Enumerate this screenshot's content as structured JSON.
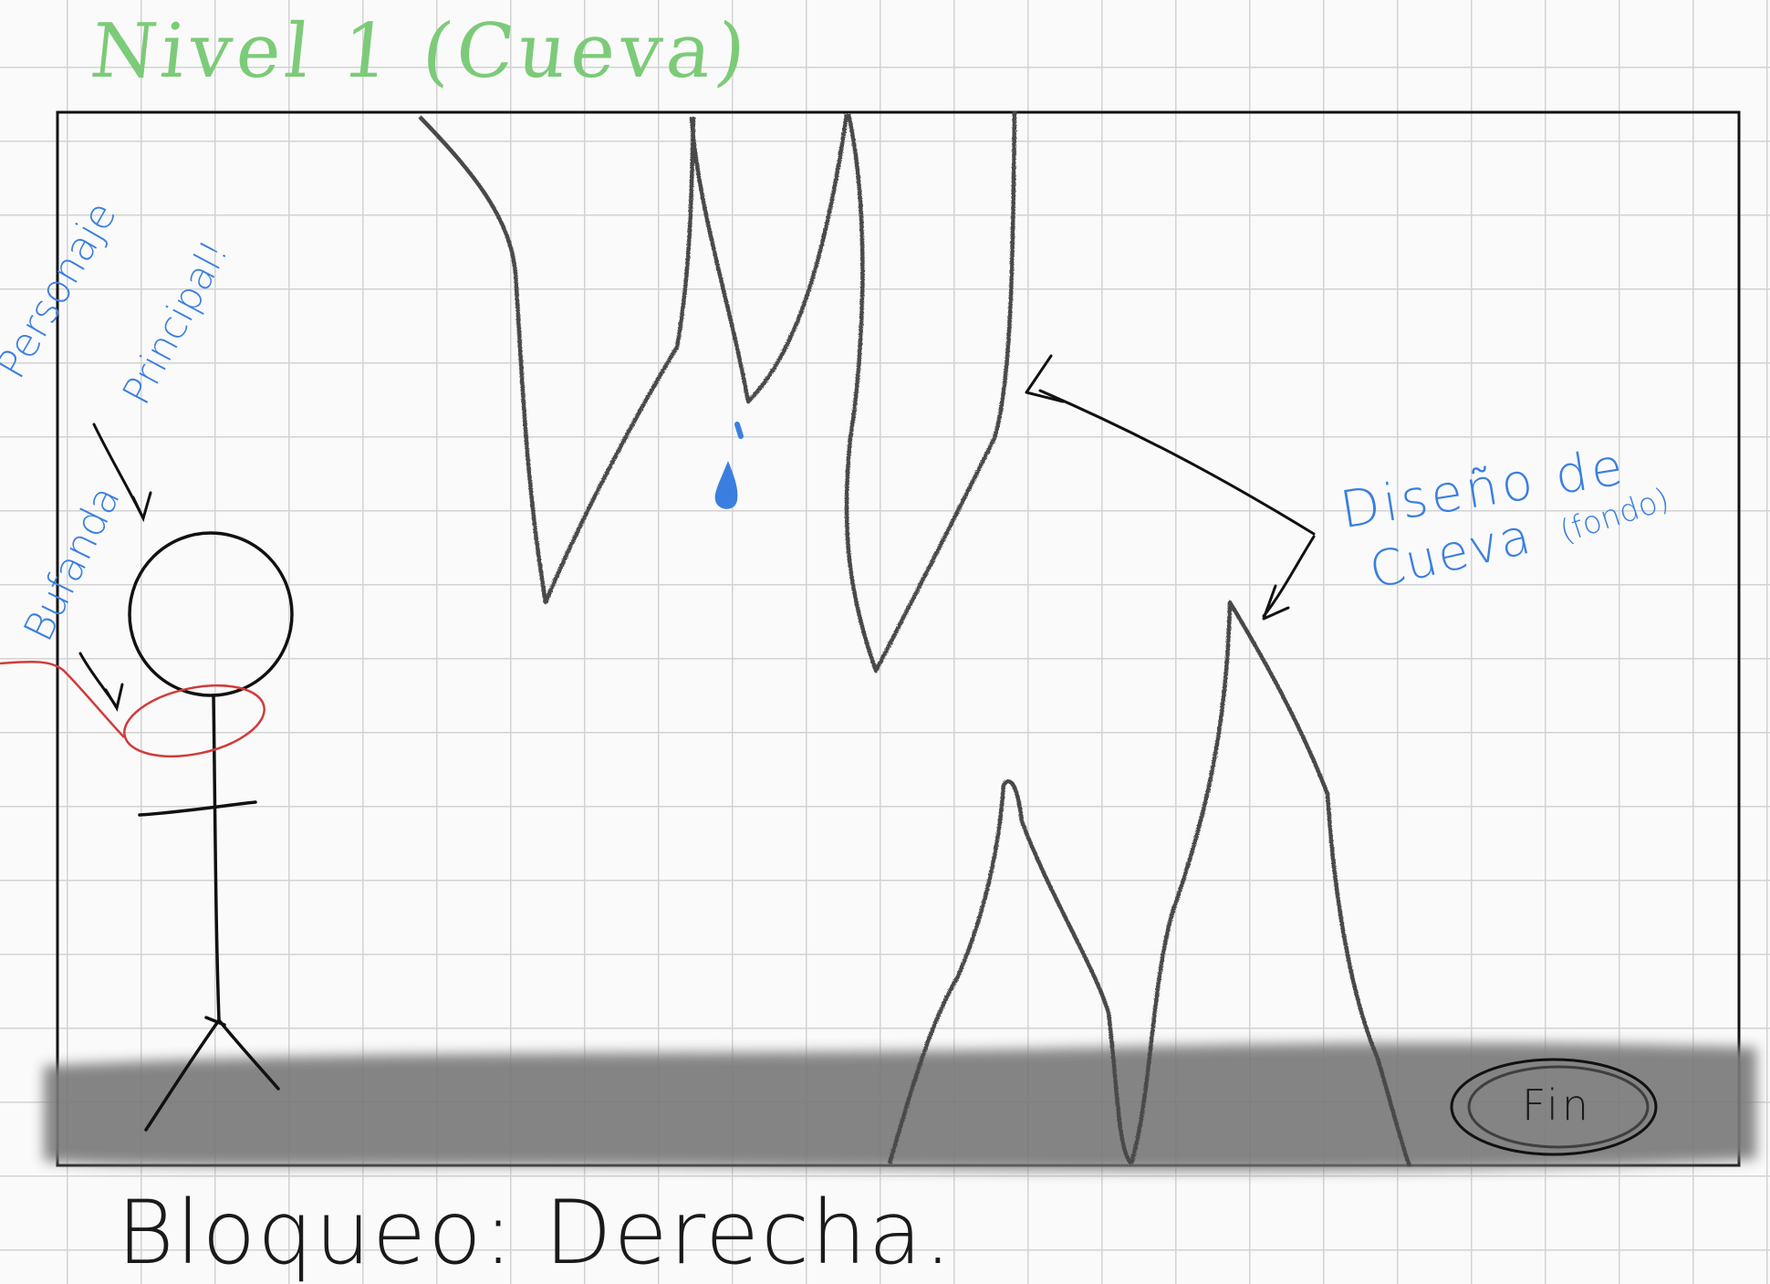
{
  "title": "Nivel 1 (Cueva)",
  "footer": "Bloqueo: Derecha.",
  "annotations": {
    "cave_design_line1": "Diseño de",
    "cave_design_line2": "Cueva",
    "cave_design_line3": "(fondo)",
    "character_line1": "Personaje",
    "character_line2": "Principal!",
    "scarf_label": "Bufanda",
    "end_label": "Fin"
  },
  "colors": {
    "title_green": "#7ccb78",
    "note_blue": "#3a7fe0",
    "scarf_red": "#d23a3a",
    "ground_gray": "#7a7a7a",
    "ink": "#111111",
    "grid": "#d3d3d3"
  }
}
